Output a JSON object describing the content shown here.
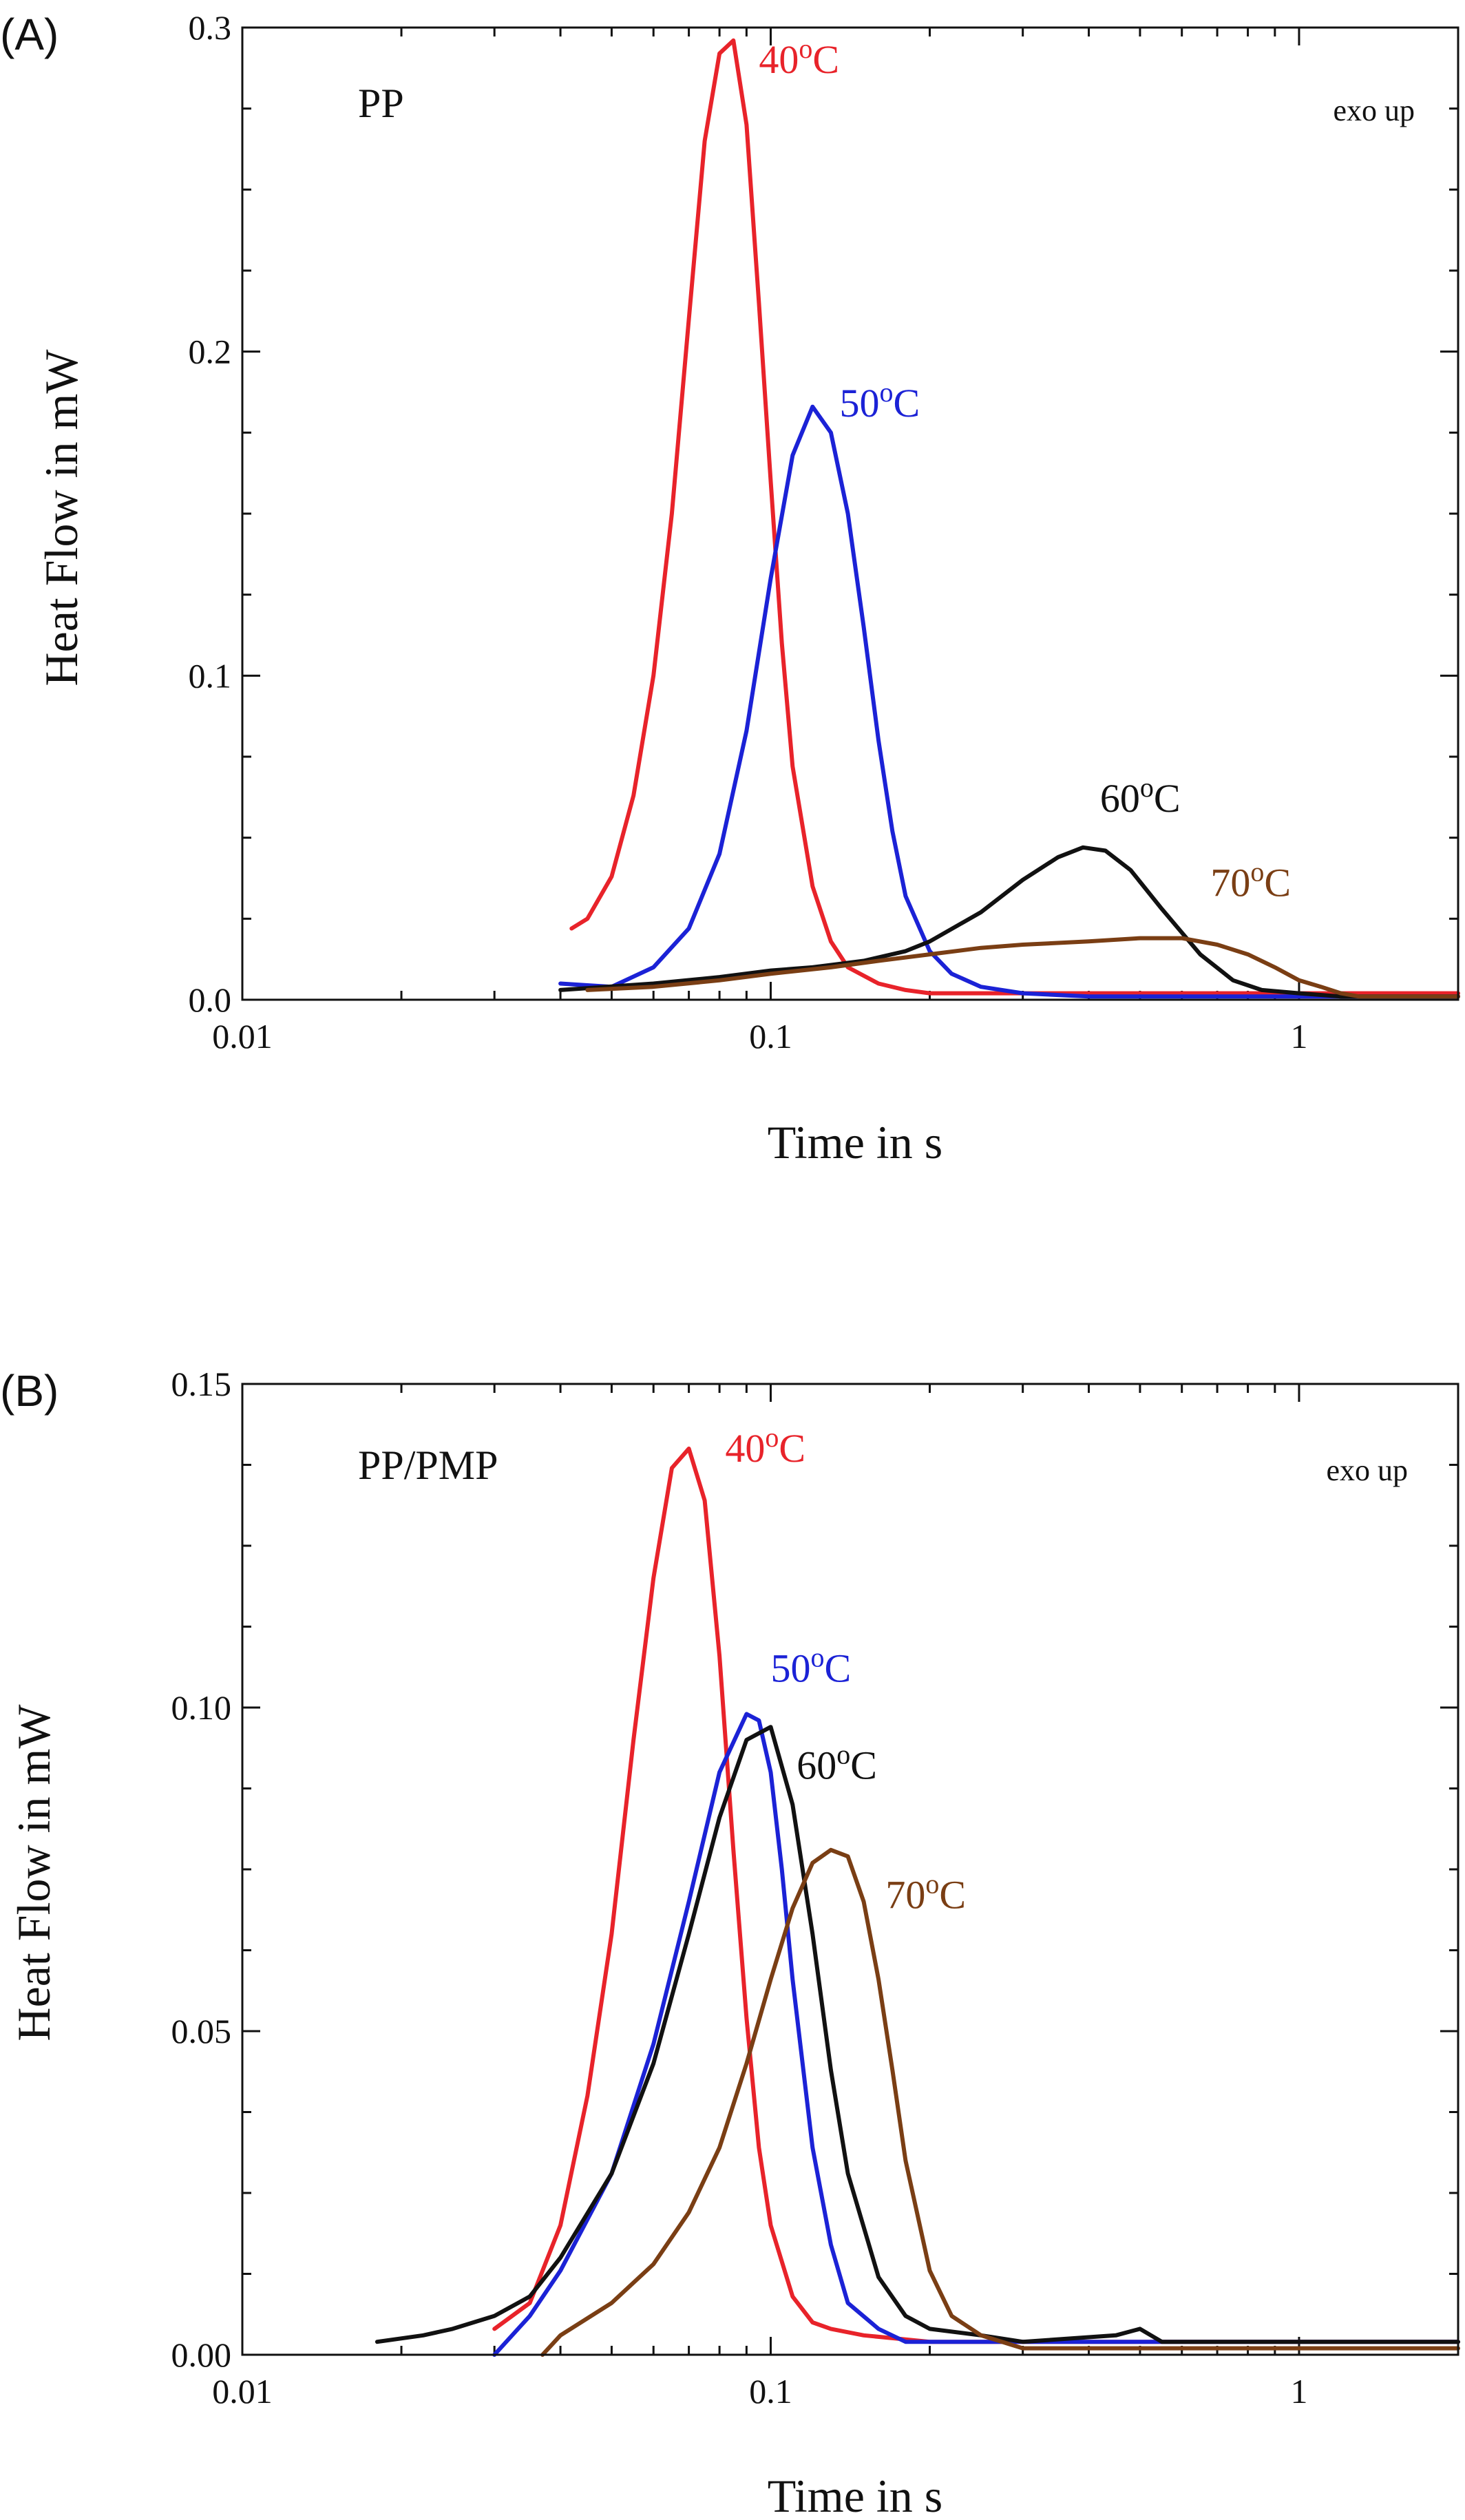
{
  "chart_data": [
    {
      "type": "line",
      "panel_label": "(A)",
      "sample_label": "PP",
      "corner_note": "exo up",
      "xlabel": "Time in s",
      "ylabel": "Heat Flow in mW",
      "x_scale": "log",
      "xlim": [
        0.01,
        2
      ],
      "ylim": [
        0,
        0.3
      ],
      "x_ticks": [
        {
          "value": 0.01,
          "label": "0.01"
        },
        {
          "value": 0.1,
          "label": "0.1"
        },
        {
          "value": 1,
          "label": "1"
        }
      ],
      "y_ticks": [
        {
          "value": 0.0,
          "label": "0.0"
        },
        {
          "value": 0.1,
          "label": "0.1"
        },
        {
          "value": 0.2,
          "label": "0.2"
        },
        {
          "value": 0.3,
          "label": "0.3"
        }
      ],
      "series": [
        {
          "name": "40",
          "unit": "°C",
          "color": "#e8232a",
          "label_at": [
            0.095,
            0.286
          ],
          "x": [
            0.042,
            0.045,
            0.05,
            0.055,
            0.06,
            0.065,
            0.07,
            0.075,
            0.08,
            0.085,
            0.09,
            0.095,
            0.1,
            0.105,
            0.11,
            0.12,
            0.13,
            0.14,
            0.16,
            0.18,
            0.2,
            0.25,
            0.3,
            0.4,
            0.6,
            1.0,
            2.0
          ],
          "y": [
            0.022,
            0.025,
            0.038,
            0.063,
            0.1,
            0.15,
            0.21,
            0.265,
            0.292,
            0.296,
            0.27,
            0.215,
            0.16,
            0.11,
            0.072,
            0.035,
            0.018,
            0.01,
            0.005,
            0.003,
            0.002,
            0.002,
            0.002,
            0.002,
            0.002,
            0.002,
            0.002
          ]
        },
        {
          "name": "50",
          "unit": "°C",
          "color": "#1b22d6",
          "label_at": [
            0.135,
            0.18
          ],
          "x": [
            0.04,
            0.05,
            0.06,
            0.07,
            0.08,
            0.09,
            0.1,
            0.11,
            0.12,
            0.13,
            0.14,
            0.15,
            0.16,
            0.17,
            0.18,
            0.2,
            0.22,
            0.25,
            0.3,
            0.4,
            0.6,
            1.0,
            2.0
          ],
          "y": [
            0.005,
            0.004,
            0.01,
            0.022,
            0.045,
            0.083,
            0.13,
            0.168,
            0.183,
            0.175,
            0.15,
            0.115,
            0.08,
            0.052,
            0.032,
            0.015,
            0.008,
            0.004,
            0.002,
            0.001,
            0.001,
            0.001,
            0.001
          ]
        },
        {
          "name": "60",
          "unit": "°C",
          "color": "#111111",
          "label_at": [
            0.42,
            0.058
          ],
          "x": [
            0.04,
            0.06,
            0.08,
            0.1,
            0.12,
            0.15,
            0.18,
            0.2,
            0.25,
            0.3,
            0.35,
            0.39,
            0.43,
            0.48,
            0.55,
            0.65,
            0.75,
            0.85,
            1.0,
            1.2,
            1.5,
            2.0
          ],
          "y": [
            0.003,
            0.005,
            0.007,
            0.009,
            0.01,
            0.012,
            0.015,
            0.018,
            0.027,
            0.037,
            0.044,
            0.047,
            0.046,
            0.04,
            0.028,
            0.014,
            0.006,
            0.003,
            0.002,
            0.001,
            0.001,
            0.001
          ]
        },
        {
          "name": "70",
          "unit": "°C",
          "color": "#7a3e14",
          "label_at": [
            0.68,
            0.032
          ],
          "x": [
            0.045,
            0.06,
            0.08,
            0.1,
            0.13,
            0.16,
            0.2,
            0.25,
            0.3,
            0.4,
            0.5,
            0.6,
            0.7,
            0.8,
            0.9,
            1.0,
            1.1,
            1.2,
            1.3,
            1.6,
            2.0
          ],
          "y": [
            0.003,
            0.004,
            0.006,
            0.008,
            0.01,
            0.012,
            0.014,
            0.016,
            0.017,
            0.018,
            0.019,
            0.019,
            0.017,
            0.014,
            0.01,
            0.006,
            0.004,
            0.002,
            0.001,
            0.001,
            0.001
          ]
        }
      ]
    },
    {
      "type": "line",
      "panel_label": "(B)",
      "sample_label": "PP/PMP",
      "corner_note": "exo up",
      "xlabel": "Time in s",
      "ylabel": "Heat Flow in mW",
      "x_scale": "log",
      "xlim": [
        0.01,
        2
      ],
      "ylim": [
        0,
        0.15
      ],
      "x_ticks": [
        {
          "value": 0.01,
          "label": "0.01"
        },
        {
          "value": 0.1,
          "label": "0.1"
        },
        {
          "value": 1,
          "label": "1"
        }
      ],
      "y_ticks": [
        {
          "value": 0.0,
          "label": "0.00"
        },
        {
          "value": 0.05,
          "label": "0.05"
        },
        {
          "value": 0.1,
          "label": "0.10"
        },
        {
          "value": 0.15,
          "label": "0.15"
        }
      ],
      "series": [
        {
          "name": "40",
          "unit": "°C",
          "color": "#e8232a",
          "label_at": [
            0.082,
            0.138
          ],
          "x": [
            0.03,
            0.035,
            0.04,
            0.045,
            0.05,
            0.055,
            0.06,
            0.065,
            0.07,
            0.075,
            0.08,
            0.085,
            0.09,
            0.095,
            0.1,
            0.11,
            0.12,
            0.13,
            0.15,
            0.2,
            0.3,
            0.5,
            1.0,
            2.0
          ],
          "y": [
            0.004,
            0.008,
            0.02,
            0.04,
            0.065,
            0.095,
            0.12,
            0.137,
            0.14,
            0.132,
            0.108,
            0.078,
            0.052,
            0.032,
            0.02,
            0.009,
            0.005,
            0.004,
            0.003,
            0.002,
            0.002,
            0.002,
            0.002,
            0.002
          ]
        },
        {
          "name": "50",
          "unit": "°C",
          "color": "#1b22d6",
          "label_at": [
            0.1,
            0.104
          ],
          "x": [
            0.03,
            0.035,
            0.04,
            0.05,
            0.06,
            0.07,
            0.08,
            0.09,
            0.095,
            0.1,
            0.105,
            0.11,
            0.12,
            0.13,
            0.14,
            0.16,
            0.18,
            0.2,
            0.25,
            0.3,
            0.5,
            1.0,
            2.0
          ],
          "y": [
            0.0,
            0.006,
            0.013,
            0.028,
            0.048,
            0.07,
            0.09,
            0.099,
            0.098,
            0.09,
            0.075,
            0.058,
            0.032,
            0.017,
            0.008,
            0.004,
            0.002,
            0.002,
            0.002,
            0.002,
            0.002,
            0.002,
            0.002
          ]
        },
        {
          "name": "60",
          "unit": "°C",
          "color": "#111111",
          "label_at": [
            0.112,
            0.089
          ],
          "x": [
            0.018,
            0.022,
            0.025,
            0.03,
            0.035,
            0.04,
            0.05,
            0.06,
            0.07,
            0.08,
            0.09,
            0.1,
            0.11,
            0.12,
            0.13,
            0.14,
            0.16,
            0.18,
            0.2,
            0.25,
            0.3,
            0.45,
            0.5,
            0.55,
            1.0,
            2.0
          ],
          "y": [
            0.002,
            0.003,
            0.004,
            0.006,
            0.009,
            0.015,
            0.028,
            0.045,
            0.065,
            0.083,
            0.095,
            0.097,
            0.085,
            0.065,
            0.044,
            0.028,
            0.012,
            0.006,
            0.004,
            0.003,
            0.002,
            0.003,
            0.004,
            0.002,
            0.002,
            0.002
          ]
        },
        {
          "name": "70",
          "unit": "°C",
          "color": "#7a3e14",
          "label_at": [
            0.165,
            0.069
          ],
          "x": [
            0.037,
            0.04,
            0.05,
            0.06,
            0.07,
            0.08,
            0.09,
            0.1,
            0.11,
            0.12,
            0.13,
            0.14,
            0.15,
            0.16,
            0.17,
            0.18,
            0.2,
            0.22,
            0.25,
            0.3,
            0.5,
            1.0,
            2.0
          ],
          "y": [
            0.0,
            0.003,
            0.008,
            0.014,
            0.022,
            0.032,
            0.045,
            0.058,
            0.069,
            0.076,
            0.078,
            0.077,
            0.07,
            0.058,
            0.044,
            0.03,
            0.013,
            0.006,
            0.003,
            0.001,
            0.001,
            0.001,
            0.001
          ]
        }
      ]
    }
  ]
}
